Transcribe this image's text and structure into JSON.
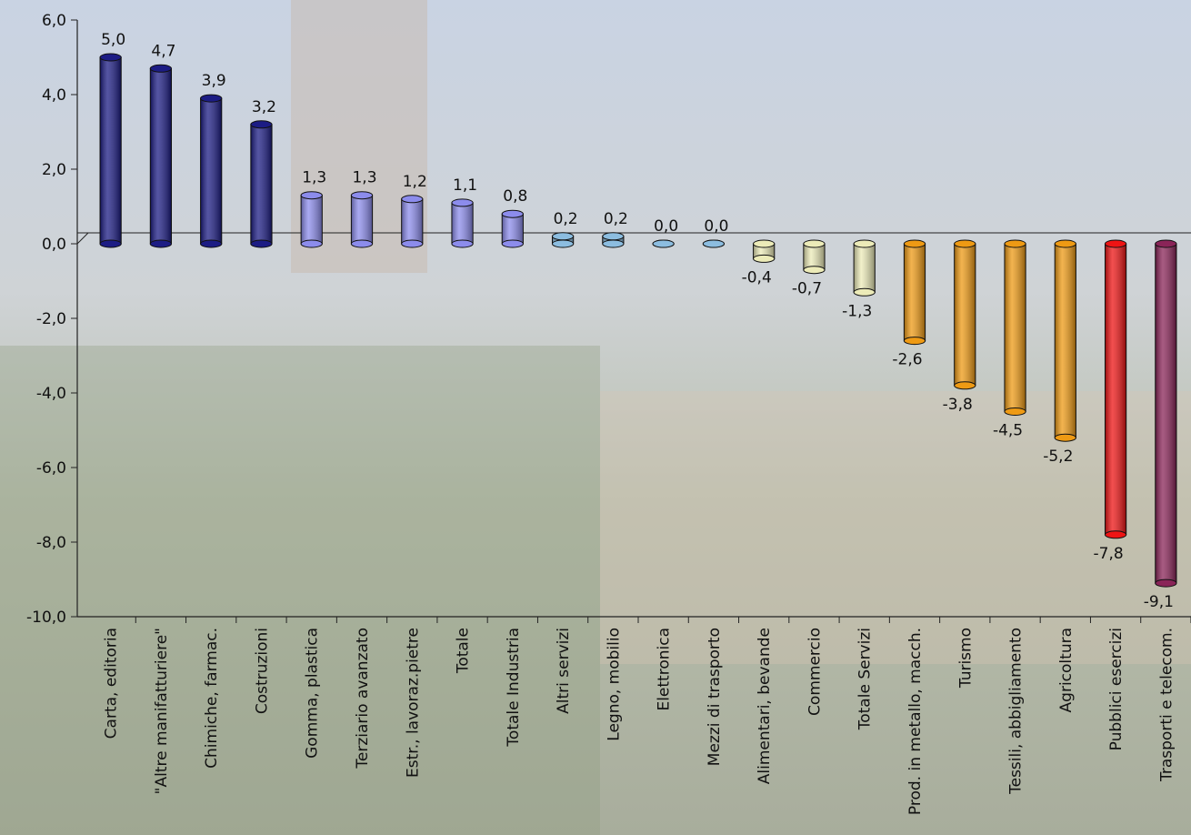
{
  "chart_data": {
    "type": "bar",
    "categories": [
      "Carta, editoria",
      "\"Altre manifatturiere\"",
      "Chimiche, farmac.",
      "Costruzioni",
      "Gomma, plastica",
      "Terziario avanzato",
      "Estr., lavoraz.pietre",
      "Totale",
      "Totale Industria",
      "Altri servizi",
      "Legno, mobilio",
      "Elettronica",
      "Mezzi di trasporto",
      "Alimentari, bevande",
      "Commercio",
      "Totale Servizi",
      "Prod. in metallo, macch.",
      "Turismo",
      "Tessili, abbigliamento",
      "Agricoltura",
      "Pubblici esercizi",
      "Trasporti e telecom."
    ],
    "values": [
      5.0,
      4.7,
      3.9,
      3.2,
      1.3,
      1.3,
      1.2,
      1.1,
      0.8,
      0.2,
      0.2,
      0.0,
      0.0,
      -0.4,
      -0.7,
      -1.3,
      -2.6,
      -3.8,
      -4.5,
      -5.2,
      -7.8,
      -9.1
    ],
    "value_labels": [
      "5,0",
      "4,7",
      "3,9",
      "3,2",
      "1,3",
      "1,3",
      "1,2",
      "1,1",
      "0,8",
      "0,2",
      "0,2",
      "0,0",
      "0,0",
      "-0,4",
      "-0,7",
      "-1,3",
      "-2,6",
      "-3,8",
      "-4,5",
      "-5,2",
      "-7,8",
      "-9,1"
    ],
    "colors": [
      "#1c1c84",
      "#1c1c84",
      "#1c1c84",
      "#1c1c84",
      "#8c8cec",
      "#8c8cec",
      "#8c8cec",
      "#8c8cec",
      "#8c8cec",
      "#8cbde0",
      "#8cbde0",
      "#8cbde0",
      "#8cbde0",
      "#ecebb8",
      "#ecebb8",
      "#ecebb8",
      "#ee9a14",
      "#ee9a14",
      "#ee9a14",
      "#ee9a14",
      "#ee1414",
      "#8a2458"
    ],
    "ylim": [
      -10,
      6
    ],
    "yticks": [
      {
        "value": -10,
        "label": "-10,0"
      },
      {
        "value": -8,
        "label": "-8,0"
      },
      {
        "value": -6,
        "label": "-6,0"
      },
      {
        "value": -4,
        "label": "-4,0"
      },
      {
        "value": -2,
        "label": "-2,0"
      },
      {
        "value": 0,
        "label": "0,0"
      },
      {
        "value": 2,
        "label": "2,0"
      },
      {
        "value": 4,
        "label": "4,0"
      },
      {
        "value": 6,
        "label": "6,0"
      }
    ]
  }
}
